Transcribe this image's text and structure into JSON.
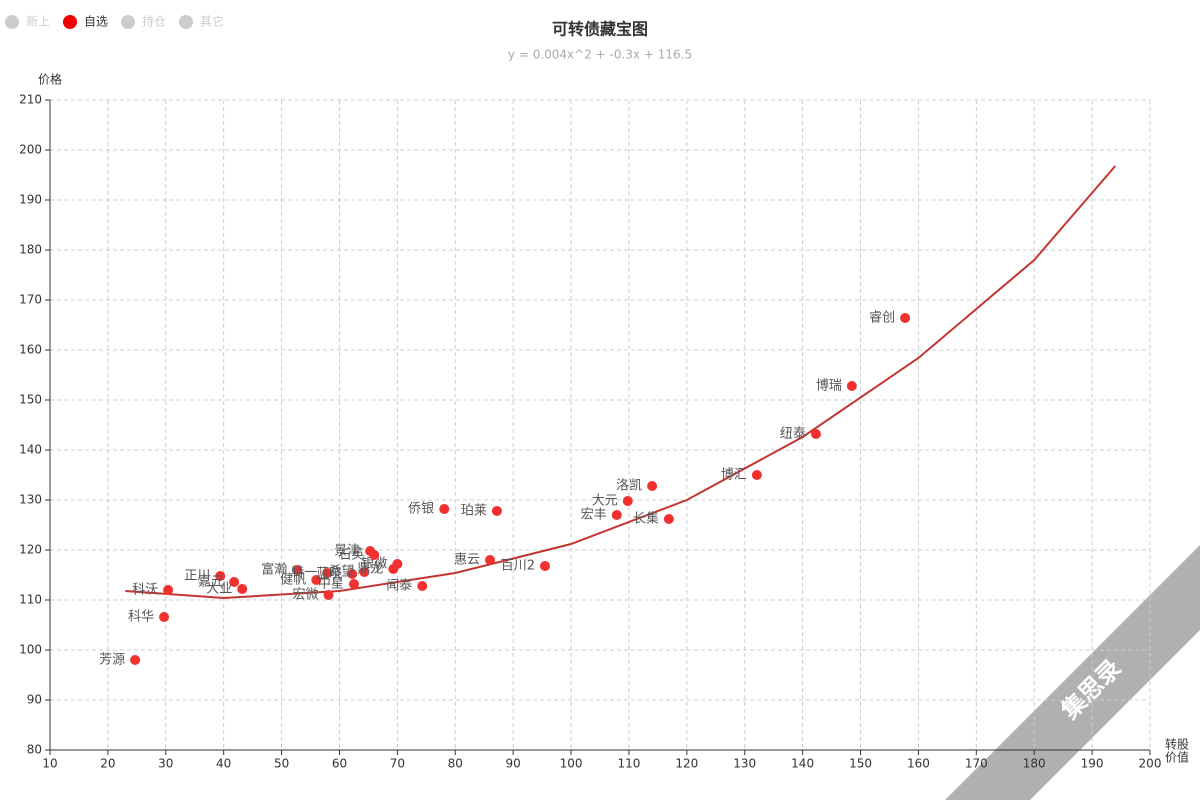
{
  "chart_data": {
    "type": "scatter",
    "title": "可转债藏宝图",
    "subtitle": "y = 0.004x^2 + -0.3x + 116.5",
    "y_label": "价格",
    "x_label": [
      "转股",
      "价值"
    ],
    "watermark": "集思录",
    "legend": [
      {
        "name": "新上",
        "color": "#cccccc"
      },
      {
        "name": "自选",
        "color": "#f00000"
      },
      {
        "name": "持仓",
        "color": "#cccccc"
      },
      {
        "name": "其它",
        "color": "#cccccc"
      }
    ],
    "xlim": [
      10,
      200
    ],
    "ylim": [
      80,
      210
    ],
    "xticks": [
      10,
      20,
      30,
      40,
      50,
      60,
      70,
      80,
      90,
      100,
      110,
      120,
      130,
      140,
      150,
      160,
      170,
      180,
      190,
      200
    ],
    "yticks": [
      80,
      90,
      100,
      110,
      120,
      130,
      140,
      150,
      160,
      170,
      180,
      190,
      200,
      210
    ],
    "grid": true,
    "series": [
      {
        "name": "自选",
        "color": "#f23030",
        "labels": [
          "睿创",
          "博瑞",
          "纽泰",
          "博汇",
          "洛凯",
          "大元",
          "宏丰",
          "长集",
          "侨银",
          "珀莱",
          "惠云",
          "百川2",
          "闻泰",
          "科沃",
          "科华",
          "芳源",
          "正川",
          "嘉元",
          "大业",
          "富瀚",
          "健帆",
          "特一",
          "宏微",
          "中星",
          "蓝晓",
          "希望",
          "鼎龙",
          "银微",
          "景津",
          "石英"
        ],
        "x": [
          157.7,
          148.5,
          142.3,
          132.1,
          114.0,
          109.8,
          107.9,
          116.9,
          78.1,
          87.2,
          86.0,
          95.5,
          74.3,
          30.4,
          29.7,
          24.7,
          39.4,
          41.8,
          43.2,
          52.7,
          56.0,
          57.9,
          58.1,
          62.5,
          62.2,
          64.3,
          69.3,
          70.0,
          65.3,
          66.0
        ],
        "values": [
          166.4,
          152.8,
          143.2,
          135,
          132.8,
          129.8,
          127,
          126.2,
          128.2,
          127.8,
          118,
          116.8,
          112.8,
          112,
          106.6,
          98,
          114.8,
          113.6,
          112.2,
          116,
          114,
          115.4,
          111,
          113.2,
          115.2,
          115.6,
          116.2,
          117.2,
          119.8,
          119
        ]
      }
    ],
    "fit": {
      "color": "#c23531",
      "x": [
        23,
        40,
        60,
        80,
        100,
        120,
        140,
        160,
        180,
        194
      ],
      "values": [
        111.8,
        110.4,
        111.8,
        115.4,
        121.2,
        130,
        142.6,
        158.4,
        178,
        196.8
      ]
    }
  }
}
